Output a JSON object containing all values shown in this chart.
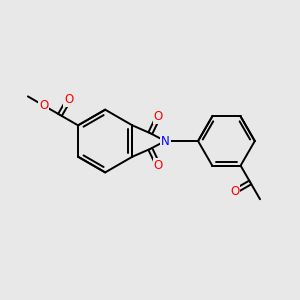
{
  "background_color": "#e8e8e8",
  "bond_color": "#000000",
  "bond_width": 1.4,
  "atom_colors": {
    "O": "#ff0000",
    "N": "#0000ff",
    "C": "#000000"
  },
  "font_size_atom": 8.5,
  "fig_width": 3.0,
  "fig_height": 3.0,
  "dpi": 100,
  "xlim": [
    0,
    10
  ],
  "ylim": [
    0,
    10
  ]
}
